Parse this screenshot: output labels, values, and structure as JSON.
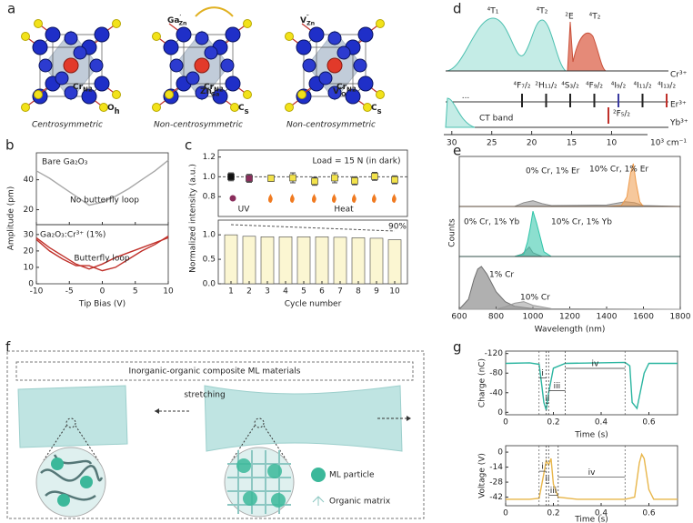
{
  "panel_labels": [
    "a",
    "b",
    "c",
    "d",
    "e",
    "f",
    "g"
  ],
  "a": {
    "structures": [
      {
        "center": {
          "text": "Cr",
          "sub": "N2"
        },
        "symmetry": {
          "text": "O",
          "sub": "h"
        },
        "caption": "Centrosymmetric",
        "defects": []
      },
      {
        "center": {
          "text": "Cr",
          "sub": "N2"
        },
        "symmetry": {
          "text": "C",
          "sub": "s"
        },
        "caption": "Non-centrosymmetric",
        "defects": [
          {
            "text": "Ga",
            "sup": "′",
            "sub": "Zn"
          },
          {
            "text": "Zn",
            "sup": "′",
            "sub": "Ga"
          }
        ]
      },
      {
        "center": {
          "text": "Cr",
          "sub": "N2"
        },
        "symmetry": {
          "text": "C",
          "sub": "s"
        },
        "caption": "Non-centrosymmetric",
        "defects": [
          {
            "text": "V",
            "sup": "″",
            "sub": "Zn"
          },
          {
            "text": "V",
            "sup": "··",
            "sub": "O"
          }
        ]
      }
    ]
  },
  "d": {
    "cr_levels": [
      "⁴T₁",
      "⁴T₂",
      "²E",
      "⁴T₂"
    ],
    "ion_labels": [
      "Cr³⁺",
      "Er³⁺",
      "Yb³⁺"
    ],
    "er_ellipsis": "···",
    "er_levels": [
      "⁴F₇/₂",
      "²H₁₁/₂",
      "⁴S₃/₂",
      "⁴F₉/₂",
      "⁴I₉/₂",
      "⁴I₁₁/₂",
      "⁴I₁₃/₂"
    ],
    "er_colors": [
      "#222222",
      "#222222",
      "#222222",
      "#222222",
      "#3a3aa0",
      "#222222",
      "#c0302a"
    ],
    "yb_level": "²F₅/₂",
    "ct_band": "CT band",
    "xlim": [
      31,
      5.5
    ],
    "xticks": [
      30,
      25,
      20,
      15,
      10
    ],
    "unit": "10³ cm⁻¹"
  },
  "f": {
    "title": "Inorganic-organic composite ML materials",
    "action": "stretching",
    "legend": [
      "ML particle",
      "Organic matrix"
    ]
  },
  "chart_data": [
    {
      "type": "line",
      "text": "Bare Ga₂O₃",
      "annotation": "No butterfly loop",
      "ylabel": "Amplitude (pm)",
      "x": [
        -10,
        -8,
        -6,
        -4,
        -2,
        0,
        2,
        4,
        6,
        8,
        10
      ],
      "xlim": [
        -10,
        10
      ],
      "ylim": [
        10,
        58
      ],
      "yticks": [
        20,
        40
      ],
      "series": [
        {
          "name": null,
          "color": "#a8a8a8",
          "values": [
            46,
            41,
            35,
            29,
            23,
            25,
            29,
            34,
            40,
            46,
            53
          ]
        }
      ]
    },
    {
      "type": "line",
      "text": "Ga₂O₃:Cr³⁺ (1%)",
      "annotation": "Butterfly loop",
      "xlabel": "Tip Bias (V)",
      "x": [
        -10,
        -8,
        -6,
        -4,
        -2,
        0,
        2,
        4,
        6,
        8,
        10
      ],
      "xlim": [
        -10,
        10
      ],
      "ylim": [
        0,
        36
      ],
      "yticks": [
        0,
        10,
        20,
        30
      ],
      "xticks": [
        -10,
        -5,
        0,
        5,
        10
      ],
      "series": [
        {
          "name": null,
          "color": "#c0302a",
          "values": [
            28,
            22,
            17,
            12,
            9,
            12,
            16,
            19,
            22,
            25,
            28
          ]
        },
        {
          "name": null,
          "color": "#c0302a",
          "values": [
            27,
            20,
            15,
            11,
            11,
            8,
            10,
            15,
            20,
            24,
            29
          ]
        }
      ]
    },
    {
      "type": "scatter",
      "text": "Load = 15 N (in dark)",
      "ylabel": "Normalized intensity (a.u.)",
      "labels": [
        "UV",
        "Heat"
      ],
      "x": [
        1,
        2,
        3.2,
        4.4,
        5.6,
        6.7,
        7.8,
        8.9,
        10
      ],
      "values": [
        1.0,
        0.985,
        0.985,
        0.99,
        0.955,
        0.99,
        0.96,
        1.005,
        0.97
      ],
      "errors": [
        0.04,
        0.04,
        0.03,
        0.05,
        0.04,
        0.05,
        0.04,
        0.04,
        0.04
      ],
      "colors": [
        "#111111",
        "#8a2e5c",
        "#f2e24a",
        "#f2e24a",
        "#f2e24a",
        "#f2e24a",
        "#f2e24a",
        "#f2e24a",
        "#f2e24a"
      ],
      "xlim": [
        0.3,
        10.7
      ],
      "ylim": [
        0.6,
        1.27
      ],
      "ref_line": 1.0,
      "yticks": [
        {
          "value": 0.8,
          "label": "0.8"
        },
        {
          "value": 1.0,
          "label": "1.0"
        },
        {
          "value": 1.2,
          "label": "1.2"
        }
      ]
    },
    {
      "type": "bar",
      "text": "90%",
      "xlabel": "Cycle number",
      "categories": [
        1,
        2,
        3,
        4,
        5,
        6,
        7,
        8,
        9,
        10
      ],
      "values": [
        1.0,
        0.97,
        0.96,
        0.96,
        0.96,
        0.96,
        0.95,
        0.94,
        0.93,
        0.9
      ],
      "color": "#fbf6d2",
      "xlim": [
        0.3,
        10.7
      ],
      "ylim": [
        0,
        1.3
      ],
      "yticks": [
        {
          "value": 0,
          "label": "0.0"
        },
        {
          "value": 0.5,
          "label": "0.5"
        },
        {
          "value": 1.0,
          "label": "1.0"
        }
      ]
    },
    {
      "type": "area",
      "xlim": [
        600,
        1800
      ],
      "ylim": [
        0,
        1.05
      ],
      "ylabel": "Counts",
      "series": [
        {
          "name": "0% Cr, 1% Er",
          "color": "#8c8c8c",
          "x": [
            600,
            900,
            950,
            1000,
            1050,
            1100,
            1400,
            1500,
            1550,
            1600,
            1800
          ],
          "values": [
            0,
            0,
            0.08,
            0.12,
            0.06,
            0.02,
            0.03,
            0.1,
            0.08,
            0.02,
            0
          ]
        },
        {
          "name": "10% Cr, 1% Er",
          "color": "#ee9a4a",
          "x": [
            600,
            1400,
            1480,
            1510,
            1530,
            1545,
            1560,
            1580,
            1600,
            1800
          ],
          "values": [
            0,
            0,
            0.02,
            0.2,
            0.7,
            0.9,
            0.5,
            0.1,
            0,
            0
          ]
        }
      ]
    },
    {
      "type": "area",
      "xlim": [
        600,
        1800
      ],
      "ylim": [
        0,
        1.05
      ],
      "series": [
        {
          "name": "0% Cr, 1% Yb",
          "color": "#8c8c8c",
          "x": [
            600,
            900,
            940,
            960,
            980,
            1000,
            1050,
            1800
          ],
          "values": [
            0,
            0,
            0.05,
            0.12,
            0.2,
            0.08,
            0,
            0
          ]
        },
        {
          "name": "10% Cr, 1% Yb",
          "color": "#2ec4a8",
          "x": [
            600,
            900,
            950,
            970,
            985,
            1000,
            1020,
            1040,
            1060,
            1100,
            1800
          ],
          "values": [
            0,
            0,
            0.05,
            0.3,
            0.6,
            0.95,
            0.7,
            0.4,
            0.1,
            0,
            0
          ]
        }
      ]
    },
    {
      "type": "area",
      "xlim": [
        600,
        1800
      ],
      "ylim": [
        0,
        1.05
      ],
      "xticks": [
        600,
        800,
        1000,
        1200,
        1400,
        1600,
        1800
      ],
      "xlabel": "Wavelength (nm)",
      "series": [
        {
          "name": "1% Cr",
          "color": "#6f6f6f",
          "x": [
            600,
            650,
            680,
            700,
            720,
            750,
            800,
            850,
            900,
            1000,
            1100,
            1800
          ],
          "values": [
            0,
            0.2,
            0.6,
            0.8,
            0.85,
            0.7,
            0.35,
            0.15,
            0.06,
            0.01,
            0,
            0
          ]
        },
        {
          "name": "10% Cr",
          "color": "#9a9a9a",
          "x": [
            600,
            800,
            850,
            900,
            950,
            1000,
            1100,
            1800
          ],
          "values": [
            0,
            0,
            0.05,
            0.12,
            0.15,
            0.08,
            0.01,
            0
          ]
        }
      ]
    },
    {
      "type": "line",
      "ylabel": "Charge (nC)",
      "xlabel": "Time (s)",
      "invert_y": true,
      "x": [
        0,
        0.1,
        0.14,
        0.15,
        0.16,
        0.17,
        0.18,
        0.2,
        0.25,
        0.5,
        0.52,
        0.53,
        0.55,
        0.58,
        0.6,
        0.72
      ],
      "series": [
        {
          "name": null,
          "color": "#2bb5a0",
          "values": [
            -100,
            -101,
            -98,
            -60,
            -20,
            -5,
            -40,
            -90,
            -100,
            -102,
            -95,
            -20,
            -8,
            -80,
            -100,
            -100
          ]
        }
      ],
      "xlim": [
        0,
        0.72
      ],
      "ylim": [
        -125,
        5
      ],
      "yticks": [
        -120,
        -80,
        -40,
        0
      ],
      "xticks": [
        0,
        0.2,
        0.4,
        0.6
      ],
      "intervals": [
        {
          "label": "i",
          "from": 0.14,
          "to": 0.17
        },
        {
          "label": "ii",
          "from": 0.17,
          "to": 0.18
        },
        {
          "label": "iii",
          "from": 0.18,
          "to": 0.25
        },
        {
          "label": "iv",
          "from": 0.25,
          "to": 0.5
        }
      ]
    },
    {
      "type": "line",
      "ylabel": "Voltage (V)",
      "xlabel": "Time (s)",
      "x": [
        0,
        0.1,
        0.14,
        0.16,
        0.17,
        0.18,
        0.19,
        0.2,
        0.22,
        0.3,
        0.5,
        0.54,
        0.56,
        0.57,
        0.58,
        0.6,
        0.62,
        0.72
      ],
      "series": [
        {
          "name": null,
          "color": "#e8b64a",
          "values": [
            -44,
            -44,
            -43,
            -20,
            -8,
            -12,
            -6,
            -30,
            -42,
            -44,
            -44,
            -42,
            -10,
            -2,
            -6,
            -35,
            -44,
            -44
          ]
        }
      ],
      "xlim": [
        0,
        0.72
      ],
      "ylim": [
        -50,
        6
      ],
      "yticks": [
        0,
        -14,
        -28,
        -42
      ],
      "xticks": [
        0,
        0.2,
        0.4,
        0.6
      ],
      "intervals": [
        {
          "label": "i",
          "from": 0.14,
          "to": 0.17
        },
        {
          "label": "ii",
          "from": 0.17,
          "to": 0.18
        },
        {
          "label": "iii",
          "from": 0.18,
          "to": 0.22
        },
        {
          "label": "iv",
          "from": 0.22,
          "to": 0.5
        }
      ]
    }
  ]
}
